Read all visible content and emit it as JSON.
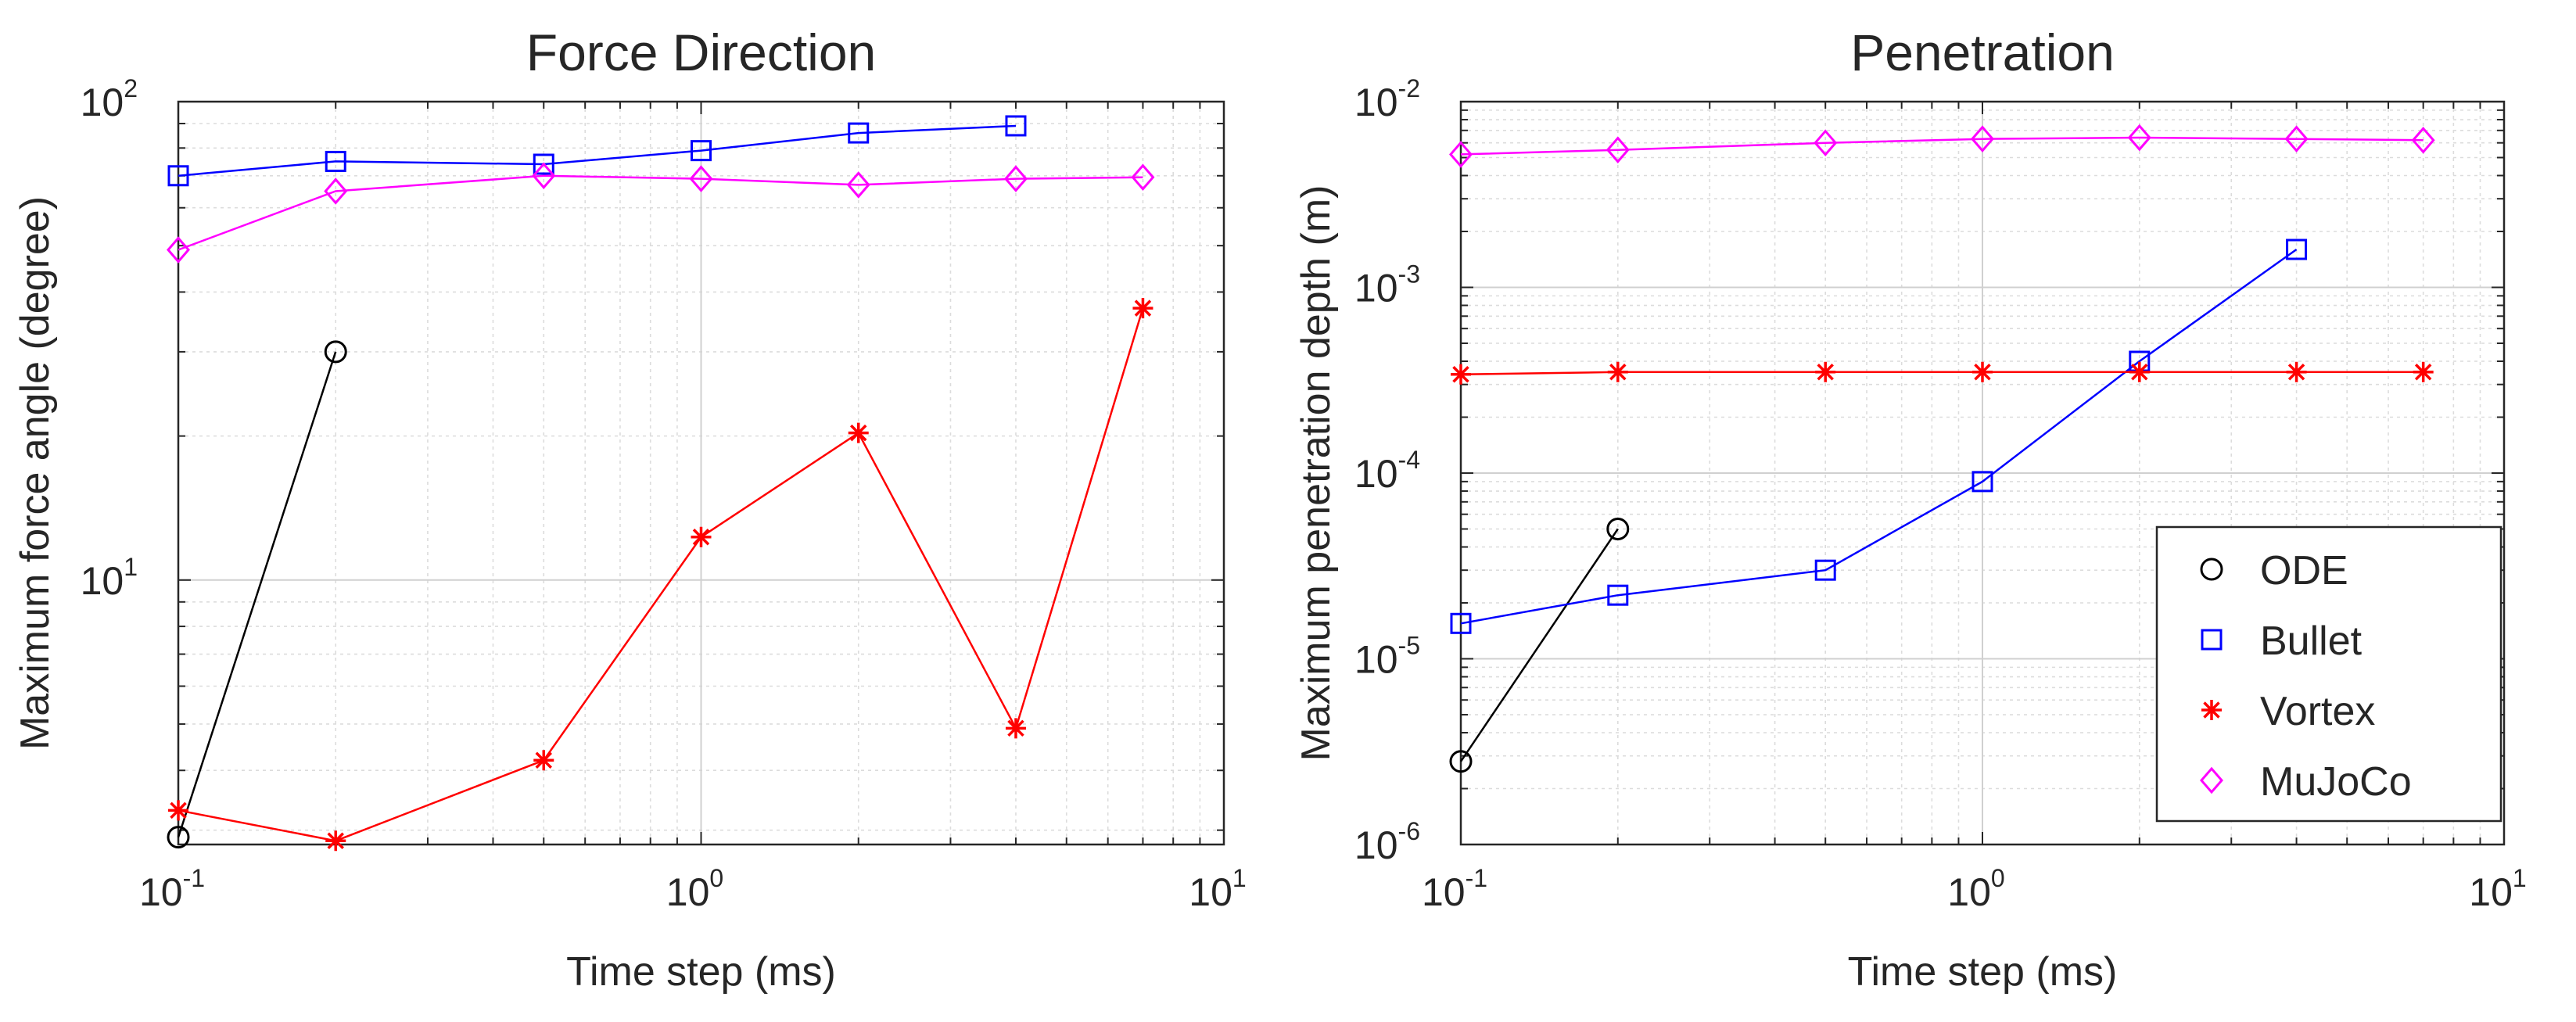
{
  "chart_data": [
    {
      "type": "line",
      "title": "Force Direction",
      "xlabel": "Time step (ms)",
      "ylabel": "Maximum force angle (degree)",
      "xscale": "log",
      "yscale": "log",
      "xlim": [
        0.1,
        10
      ],
      "ylim": [
        2.8,
        100
      ],
      "grid": true,
      "minor_grid": true,
      "x_ticks": [
        {
          "value": 0.1,
          "base": "10",
          "exp": "-1"
        },
        {
          "value": 1,
          "base": "10",
          "exp": "0"
        },
        {
          "value": 10,
          "base": "10",
          "exp": "1"
        }
      ],
      "y_ticks": [
        {
          "value": 10,
          "base": "10",
          "exp": "1"
        },
        {
          "value": 100,
          "base": "10",
          "exp": "2"
        }
      ],
      "series": [
        {
          "name": "ODE",
          "color": "#000000",
          "marker": "circle",
          "x": [
            0.1,
            0.2
          ],
          "y": [
            2.9,
            30
          ]
        },
        {
          "name": "Bullet",
          "color": "#0000ff",
          "marker": "square",
          "x": [
            0.1,
            0.2,
            0.5,
            1,
            2,
            4
          ],
          "y": [
            70,
            75,
            74,
            79,
            86,
            89
          ]
        },
        {
          "name": "Vortex",
          "color": "#ff0000",
          "marker": "asterisk",
          "x": [
            0.1,
            0.2,
            0.5,
            1,
            2,
            4,
            7
          ],
          "y": [
            3.3,
            2.85,
            4.2,
            12.3,
            20.3,
            4.9,
            37
          ]
        },
        {
          "name": "MuJoCo",
          "color": "#ff00ff",
          "marker": "diamond",
          "x": [
            0.1,
            0.2,
            0.5,
            1,
            2,
            4,
            7
          ],
          "y": [
            49,
            65,
            70,
            69,
            67,
            69,
            69.5
          ]
        }
      ]
    },
    {
      "type": "line",
      "title": "Penetration",
      "xlabel": "Time step (ms)",
      "ylabel": "Maximum penetration depth (m)",
      "xscale": "log",
      "yscale": "log",
      "xlim": [
        0.1,
        10
      ],
      "ylim": [
        1e-06,
        0.01
      ],
      "grid": true,
      "minor_grid": true,
      "legend": "bottom-right",
      "x_ticks": [
        {
          "value": 0.1,
          "base": "10",
          "exp": "-1"
        },
        {
          "value": 1,
          "base": "10",
          "exp": "0"
        },
        {
          "value": 10,
          "base": "10",
          "exp": "1"
        }
      ],
      "y_ticks": [
        {
          "value": 1e-06,
          "base": "10",
          "exp": "-6"
        },
        {
          "value": 1e-05,
          "base": "10",
          "exp": "-5"
        },
        {
          "value": 0.0001,
          "base": "10",
          "exp": "-4"
        },
        {
          "value": 0.001,
          "base": "10",
          "exp": "-3"
        },
        {
          "value": 0.01,
          "base": "10",
          "exp": "-2"
        }
      ],
      "series": [
        {
          "name": "ODE",
          "color": "#000000",
          "marker": "circle",
          "x": [
            0.1,
            0.2
          ],
          "y": [
            2.8e-06,
            5e-05
          ]
        },
        {
          "name": "Bullet",
          "color": "#0000ff",
          "marker": "square",
          "x": [
            0.1,
            0.2,
            0.5,
            1,
            2,
            4
          ],
          "y": [
            1.55e-05,
            2.2e-05,
            3e-05,
            9e-05,
            0.0004,
            0.0016
          ]
        },
        {
          "name": "Vortex",
          "color": "#ff0000",
          "marker": "asterisk",
          "x": [
            0.1,
            0.2,
            0.5,
            1,
            2,
            4,
            7
          ],
          "y": [
            0.00034,
            0.00035,
            0.00035,
            0.00035,
            0.00035,
            0.00035,
            0.00035
          ]
        },
        {
          "name": "MuJoCo",
          "color": "#ff00ff",
          "marker": "diamond",
          "x": [
            0.1,
            0.2,
            0.5,
            1,
            2,
            4,
            7
          ],
          "y": [
            0.0052,
            0.0055,
            0.006,
            0.0063,
            0.0064,
            0.0063,
            0.0062
          ]
        }
      ]
    }
  ]
}
